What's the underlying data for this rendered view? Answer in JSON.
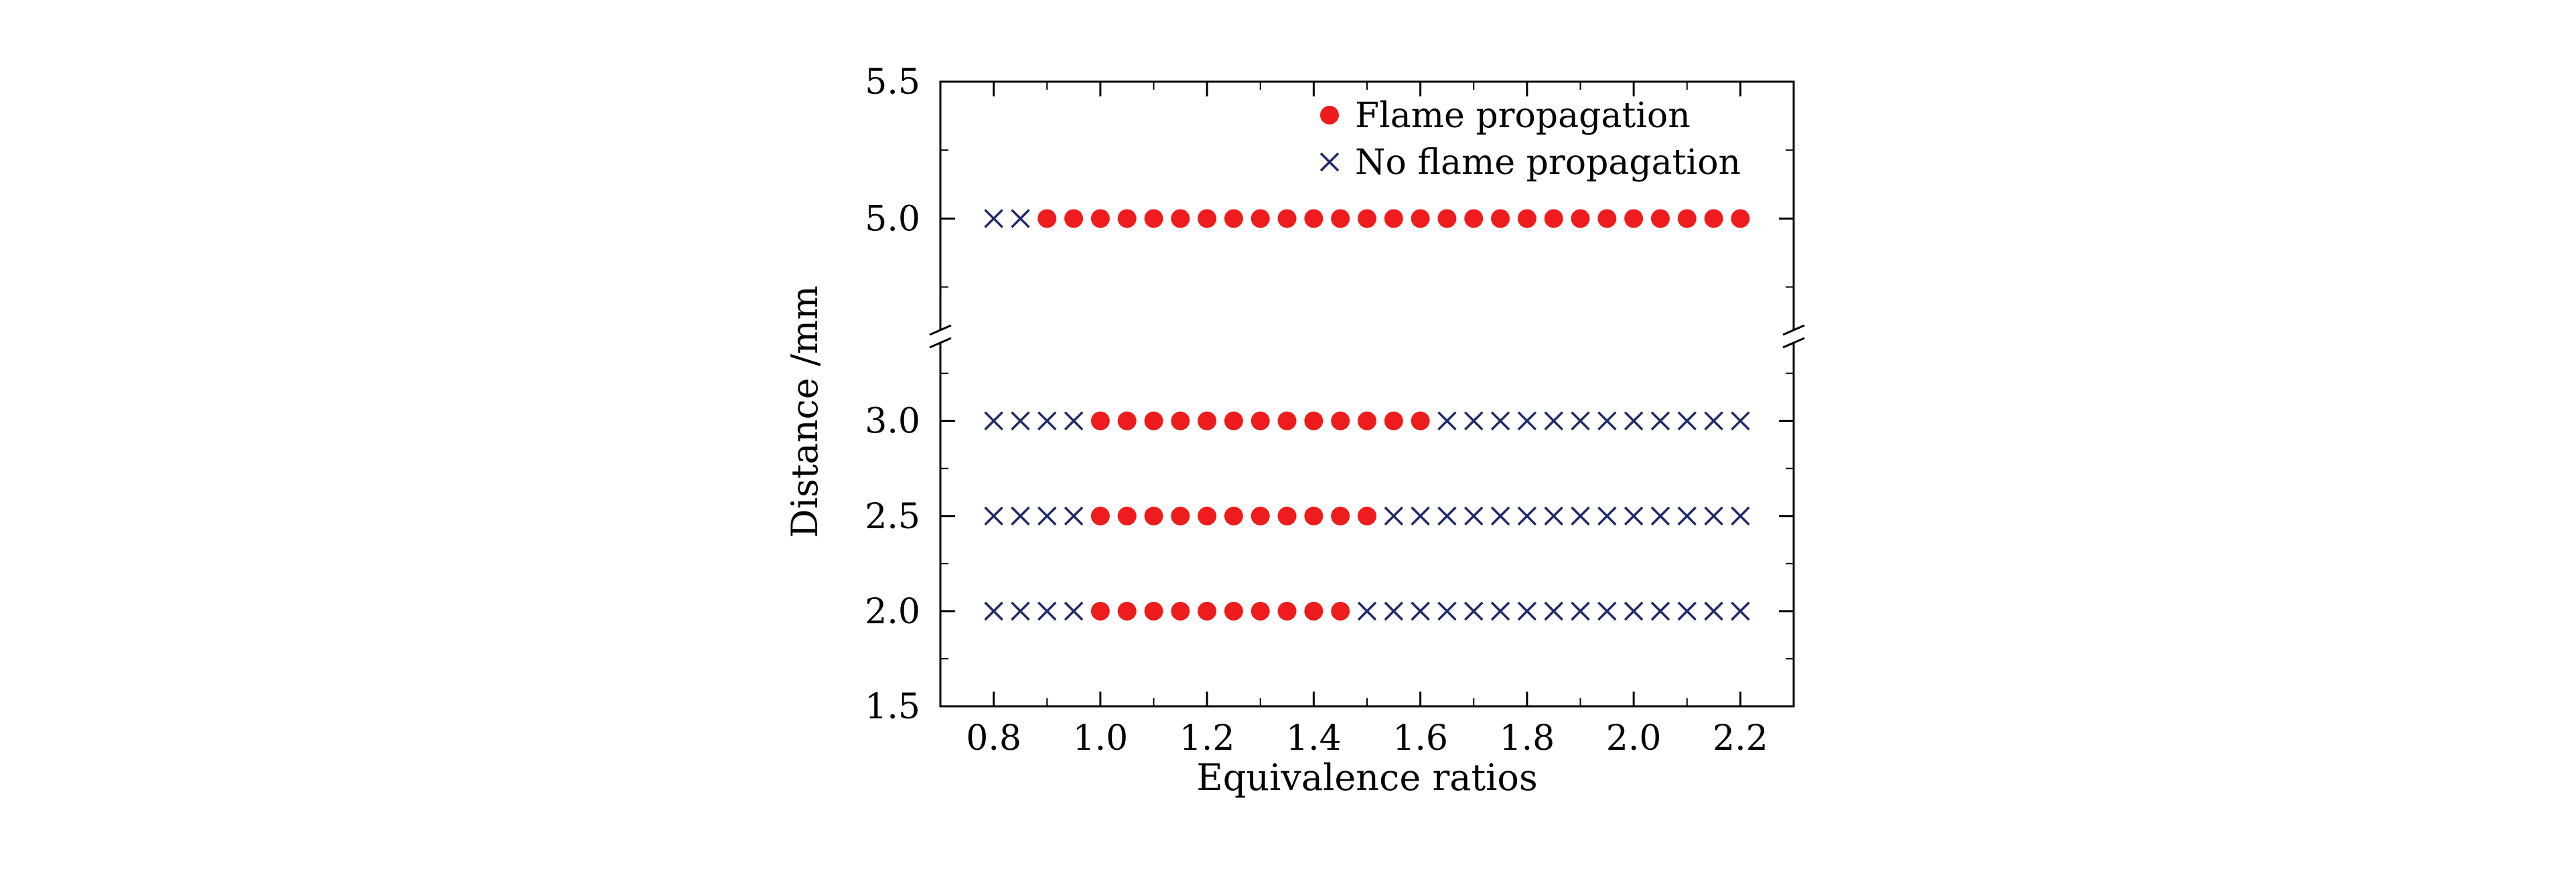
{
  "chart_data": {
    "type": "scatter",
    "xlabel": "Equivalence ratios",
    "ylabel": "Distance /mm",
    "xlim": [
      0.7,
      2.3
    ],
    "ylim": [
      1.5,
      5.5
    ],
    "y_axis_break": [
      3.4,
      4.6
    ],
    "x_ticks": [
      "0.8",
      "1.0",
      "1.2",
      "1.4",
      "1.6",
      "1.8",
      "2.0",
      "2.2"
    ],
    "y_ticks": [
      "1.5",
      "2.0",
      "2.5",
      "3.0",
      "5.0",
      "5.5"
    ],
    "grid": false,
    "legend_position": "top-right",
    "x": [
      0.8,
      0.85,
      0.9,
      0.95,
      1.0,
      1.05,
      1.1,
      1.15,
      1.2,
      1.25,
      1.3,
      1.35,
      1.4,
      1.45,
      1.5,
      1.55,
      1.6,
      1.65,
      1.7,
      1.75,
      1.8,
      1.85,
      1.9,
      1.95,
      2.0,
      2.05,
      2.1,
      2.15,
      2.2
    ],
    "series": [
      {
        "name": "Flame propagation",
        "marker": "filled-circle",
        "color": "#ee1c1c",
        "points": [
          {
            "distance": 5.0,
            "x": [
              0.9,
              0.95,
              1.0,
              1.05,
              1.1,
              1.15,
              1.2,
              1.25,
              1.3,
              1.35,
              1.4,
              1.45,
              1.5,
              1.55,
              1.6,
              1.65,
              1.7,
              1.75,
              1.8,
              1.85,
              1.9,
              1.95,
              2.0,
              2.05,
              2.1,
              2.15,
              2.2
            ]
          },
          {
            "distance": 3.0,
            "x": [
              1.0,
              1.05,
              1.1,
              1.15,
              1.2,
              1.25,
              1.3,
              1.35,
              1.4,
              1.45,
              1.5,
              1.55,
              1.6
            ]
          },
          {
            "distance": 2.5,
            "x": [
              1.0,
              1.05,
              1.1,
              1.15,
              1.2,
              1.25,
              1.3,
              1.35,
              1.4,
              1.45,
              1.5
            ]
          },
          {
            "distance": 2.0,
            "x": [
              1.0,
              1.05,
              1.1,
              1.15,
              1.2,
              1.25,
              1.3,
              1.35,
              1.4,
              1.45
            ]
          }
        ]
      },
      {
        "name": "No flame propagation",
        "marker": "cross",
        "color": "#1f2a6b",
        "points": [
          {
            "distance": 5.0,
            "x": [
              0.8,
              0.85
            ]
          },
          {
            "distance": 3.0,
            "x": [
              0.8,
              0.85,
              0.9,
              0.95,
              1.65,
              1.7,
              1.75,
              1.8,
              1.85,
              1.9,
              1.95,
              2.0,
              2.05,
              2.1,
              2.15,
              2.2
            ]
          },
          {
            "distance": 2.5,
            "x": [
              0.8,
              0.85,
              0.9,
              0.95,
              1.55,
              1.6,
              1.65,
              1.7,
              1.75,
              1.8,
              1.85,
              1.9,
              1.95,
              2.0,
              2.05,
              2.1,
              2.15,
              2.2
            ]
          },
          {
            "distance": 2.0,
            "x": [
              0.8,
              0.85,
              0.9,
              0.95,
              1.5,
              1.55,
              1.6,
              1.65,
              1.7,
              1.75,
              1.8,
              1.85,
              1.9,
              1.95,
              2.0,
              2.05,
              2.1,
              2.15,
              2.2
            ]
          }
        ]
      }
    ]
  }
}
